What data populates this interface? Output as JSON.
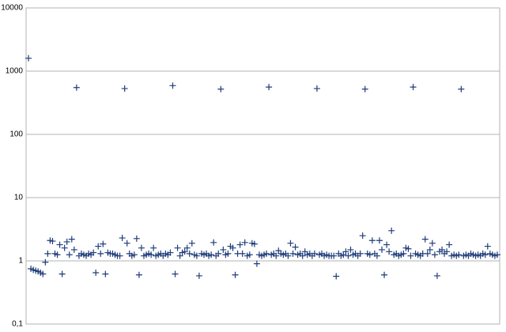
{
  "chart_data": {
    "type": "scatter",
    "x": [
      1,
      2,
      3,
      4,
      5,
      6,
      7,
      8,
      9,
      10,
      11,
      12,
      13,
      14,
      15,
      16,
      17,
      18,
      19,
      20,
      21,
      22,
      23,
      24,
      25,
      26,
      27,
      28,
      29,
      30,
      31,
      32,
      33,
      34,
      35,
      36,
      37,
      38,
      39,
      40,
      41,
      42,
      43,
      44,
      45,
      46,
      47,
      48,
      49,
      50,
      51,
      52,
      53,
      54,
      55,
      56,
      57,
      58,
      59,
      60,
      61,
      62,
      63,
      64,
      65,
      66,
      67,
      68,
      69,
      70,
      71,
      72,
      73,
      74,
      75,
      76,
      77,
      78,
      79,
      80,
      81,
      82,
      83,
      84,
      85,
      86,
      87,
      88,
      89,
      90,
      91,
      92,
      93,
      94,
      95,
      96,
      97,
      98,
      99,
      100,
      101,
      102,
      103,
      104,
      105,
      106,
      107,
      108,
      109,
      110,
      111,
      112,
      113,
      114,
      115,
      116,
      117,
      118,
      119,
      120,
      121,
      122,
      123,
      124,
      125,
      126,
      127,
      128,
      129,
      130,
      131,
      132,
      133,
      134,
      135,
      136,
      137,
      138,
      139,
      140,
      141,
      142,
      143,
      144,
      145,
      146,
      147,
      148,
      149,
      150,
      151,
      152,
      153,
      154,
      155,
      156,
      157,
      158,
      159,
      160,
      161,
      162,
      163,
      164,
      165,
      166,
      167,
      168,
      169,
      170,
      171,
      172,
      173,
      174,
      175,
      176,
      177,
      178,
      179,
      180,
      181,
      182,
      183,
      184,
      185,
      186,
      187,
      188,
      189,
      190,
      191,
      192,
      193,
      194,
      195,
      196
    ],
    "values": [
      1600,
      0.75,
      0.72,
      0.7,
      0.68,
      0.65,
      0.62,
      0.95,
      1.3,
      2.1,
      2.05,
      1.3,
      1.25,
      1.8,
      0.62,
      1.6,
      2.0,
      1.25,
      2.2,
      1.5,
      550,
      1.2,
      1.3,
      1.25,
      1.2,
      1.3,
      1.25,
      1.35,
      0.65,
      1.7,
      1.3,
      1.85,
      0.62,
      1.35,
      1.3,
      1.3,
      1.25,
      1.2,
      1.2,
      2.3,
      530,
      1.9,
      1.3,
      1.2,
      1.25,
      2.25,
      0.6,
      1.6,
      1.2,
      1.25,
      1.3,
      1.25,
      1.6,
      1.2,
      1.25,
      1.3,
      1.2,
      1.3,
      1.25,
      1.35,
      590,
      0.62,
      1.6,
      1.2,
      1.35,
      1.4,
      1.6,
      1.3,
      1.9,
      1.25,
      1.2,
      0.58,
      1.3,
      1.25,
      1.3,
      1.2,
      1.25,
      1.95,
      1.2,
      1.3,
      520,
      1.5,
      1.25,
      1.3,
      1.7,
      1.6,
      0.6,
      1.3,
      1.8,
      1.3,
      1.95,
      1.2,
      1.25,
      1.9,
      1.85,
      0.9,
      1.25,
      1.2,
      1.25,
      1.3,
      560,
      1.25,
      1.3,
      1.2,
      1.45,
      1.3,
      1.25,
      1.3,
      1.2,
      1.9,
      1.3,
      1.65,
      1.25,
      1.3,
      1.2,
      1.4,
      1.25,
      1.3,
      1.2,
      1.3,
      530,
      1.25,
      1.3,
      1.2,
      1.25,
      1.2,
      1.2,
      1.2,
      0.57,
      1.3,
      1.2,
      1.25,
      1.4,
      1.2,
      1.5,
      1.25,
      1.3,
      1.2,
      1.3,
      2.5,
      520,
      1.3,
      1.25,
      2.1,
      1.3,
      1.2,
      2.1,
      1.5,
      0.6,
      1.8,
      1.4,
      3.0,
      1.25,
      1.3,
      1.2,
      1.25,
      1.3,
      1.6,
      1.55,
      1.2,
      560,
      1.3,
      1.25,
      1.2,
      1.3,
      2.2,
      1.3,
      1.5,
      1.9,
      1.25,
      0.58,
      1.4,
      1.5,
      1.3,
      1.4,
      1.8,
      1.2,
      1.25,
      1.2,
      1.25,
      520,
      1.2,
      1.25,
      1.2,
      1.3,
      1.25,
      1.2,
      1.25,
      1.2,
      1.3,
      1.25,
      1.7,
      1.3,
      1.25,
      1.2,
      1.25
    ],
    "color": "#1f3d7a",
    "log_y": true,
    "grid": true,
    "xlim": [
      0,
      197
    ],
    "ylim": [
      0.1,
      10000
    ],
    "yticks": [
      {
        "value": 0.1,
        "label": "0,1"
      },
      1,
      10,
      100,
      1000,
      10000
    ]
  }
}
